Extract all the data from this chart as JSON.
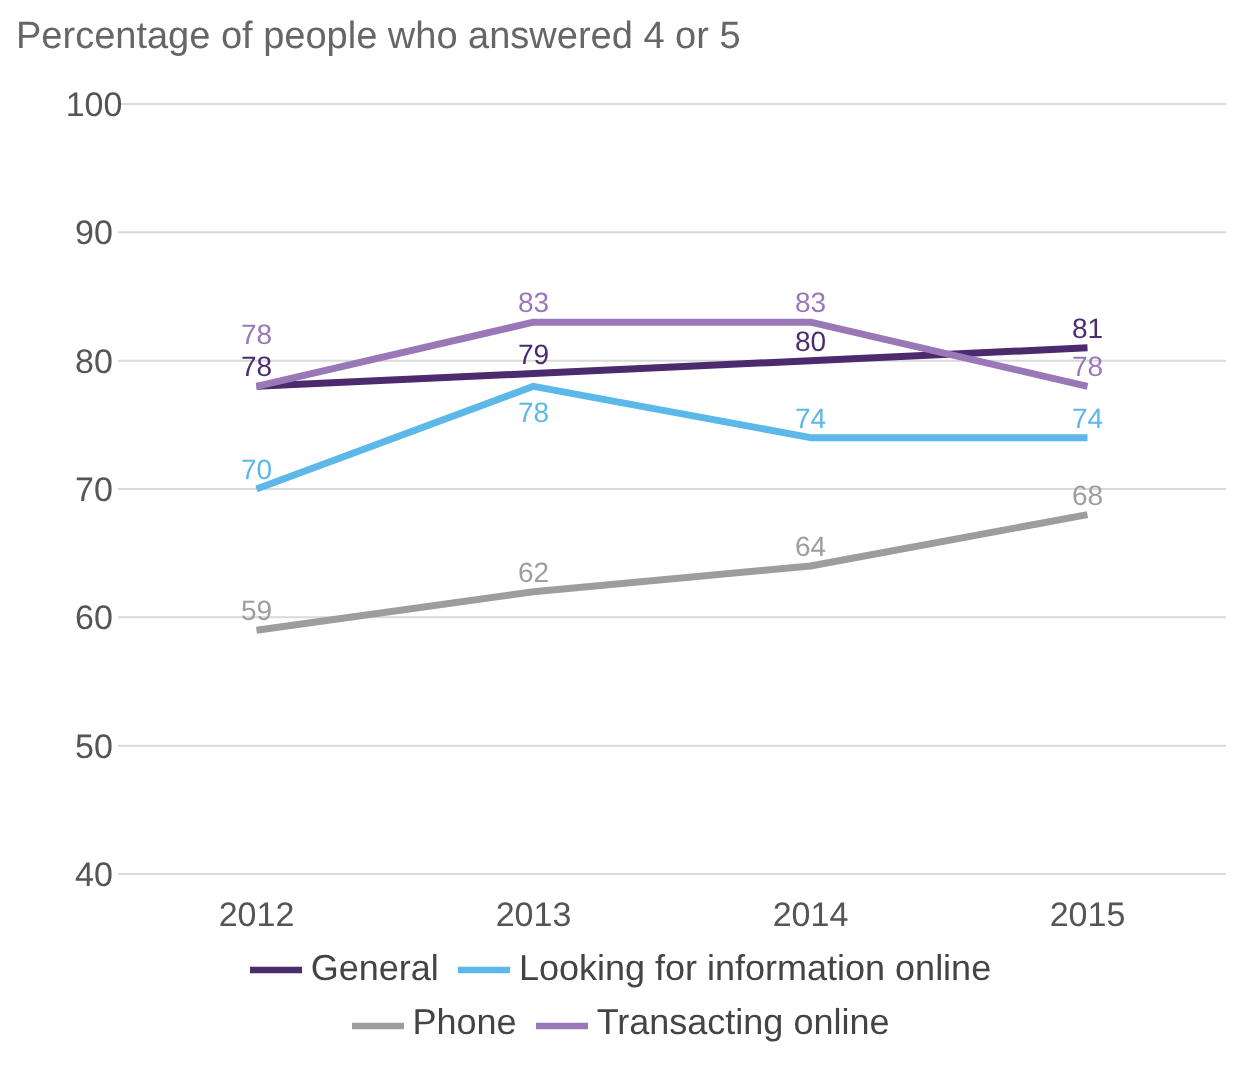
{
  "chart_data": {
    "type": "line",
    "title": "Percentage of people who answered 4 or 5",
    "categories": [
      "2012",
      "2013",
      "2014",
      "2015"
    ],
    "series": [
      {
        "name": "General",
        "color": "#4b2a6e",
        "values": [
          78,
          79,
          80,
          81
        ]
      },
      {
        "name": "Looking for information online",
        "color": "#5cb8e8",
        "values": [
          70,
          78,
          74,
          74
        ]
      },
      {
        "name": "Phone",
        "color": "#9d9d9d",
        "values": [
          59,
          62,
          64,
          68
        ]
      },
      {
        "name": "Transacting online",
        "color": "#9a78b8",
        "values": [
          78,
          83,
          83,
          78
        ]
      }
    ],
    "ylim": [
      40,
      100
    ],
    "yticks": [
      40,
      50,
      60,
      70,
      80,
      90,
      100
    ],
    "grid": "y",
    "legend": "bottom",
    "data_labels": true,
    "marker": "none",
    "line_style": "solid"
  }
}
